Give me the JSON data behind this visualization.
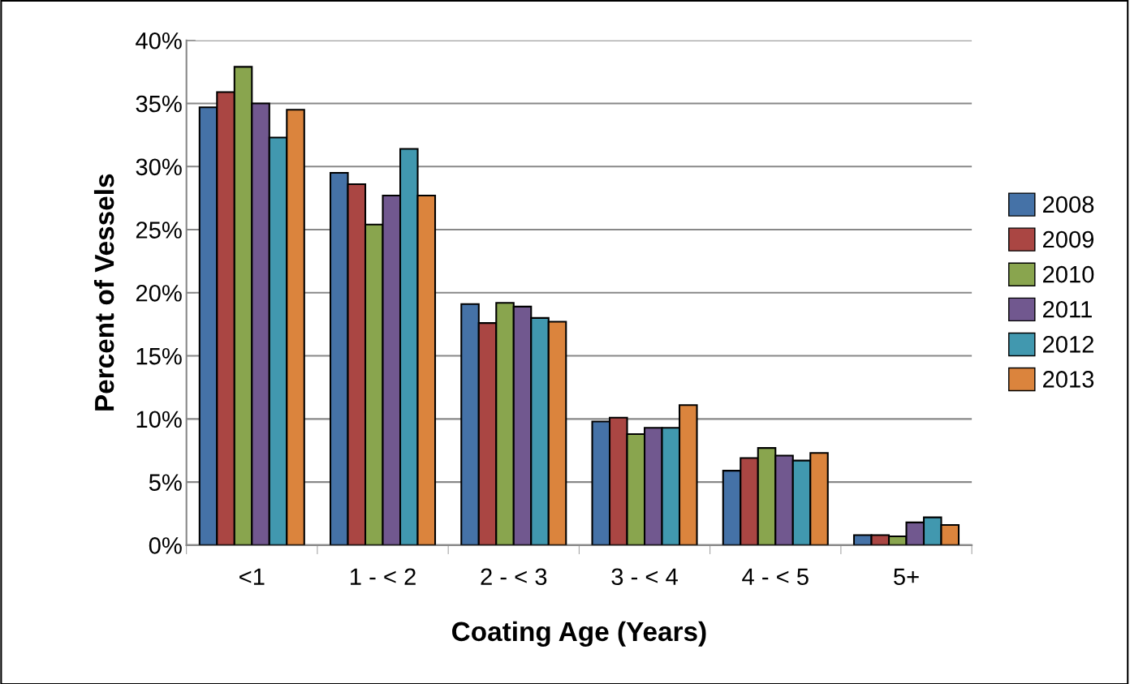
{
  "chart_data": {
    "type": "bar",
    "xlabel": "Coating Age (Years)",
    "ylabel": "Percent of Vessels",
    "categories": [
      "<1",
      "1 - < 2",
      "2 - < 3",
      "3 - < 4",
      "4 - < 5",
      "5+"
    ],
    "series": [
      {
        "name": "2008",
        "color": "#4572a7",
        "values": [
          34.7,
          29.5,
          19.1,
          9.8,
          5.9,
          0.8
        ]
      },
      {
        "name": "2009",
        "color": "#aa4643",
        "values": [
          35.9,
          28.6,
          17.6,
          10.1,
          6.9,
          0.8
        ]
      },
      {
        "name": "2010",
        "color": "#89a54e",
        "values": [
          37.9,
          25.4,
          19.2,
          8.8,
          7.7,
          0.7
        ]
      },
      {
        "name": "2011",
        "color": "#71588f",
        "values": [
          35.0,
          27.7,
          18.9,
          9.3,
          7.1,
          1.8
        ]
      },
      {
        "name": "2012",
        "color": "#4198af",
        "values": [
          32.3,
          31.4,
          18.0,
          9.3,
          6.7,
          2.2
        ]
      },
      {
        "name": "2013",
        "color": "#db843d",
        "values": [
          34.5,
          27.7,
          17.7,
          11.1,
          7.3,
          1.6
        ]
      }
    ],
    "ylim": [
      0,
      40
    ],
    "yticks": [
      {
        "value": 0,
        "label": "0%"
      },
      {
        "value": 5,
        "label": "5%"
      },
      {
        "value": 10,
        "label": "10%"
      },
      {
        "value": 15,
        "label": "15%"
      },
      {
        "value": 20,
        "label": "20%"
      },
      {
        "value": 25,
        "label": "25%"
      },
      {
        "value": 30,
        "label": "30%"
      },
      {
        "value": 35,
        "label": "35%"
      },
      {
        "value": 40,
        "label": "40%"
      }
    ],
    "grid": "y",
    "legend": "right"
  }
}
